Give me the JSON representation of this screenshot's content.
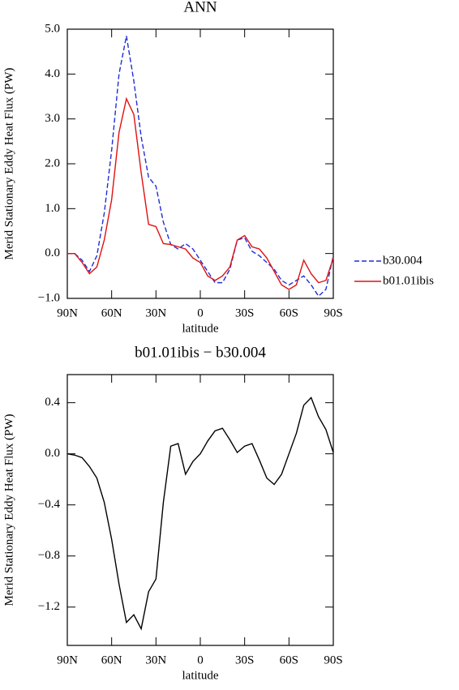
{
  "chart_data": [
    {
      "type": "line",
      "title": "ANN",
      "xlabel": "latitude",
      "ylabel": "Merid Stationary Eddy Heat Flux (PW)",
      "x": [
        90,
        85,
        80,
        75,
        70,
        65,
        60,
        55,
        50,
        45,
        40,
        35,
        30,
        25,
        20,
        15,
        10,
        5,
        0,
        -5,
        -10,
        -15,
        -20,
        -25,
        -30,
        -35,
        -40,
        -45,
        -50,
        -55,
        -60,
        -65,
        -70,
        -75,
        -80,
        -85,
        -90
      ],
      "series": [
        {
          "name": "b30.004",
          "color": "#1f2fd6",
          "style": "dashed",
          "values": [
            0.0,
            0.0,
            -0.15,
            -0.4,
            -0.05,
            0.9,
            2.3,
            4.0,
            4.85,
            3.85,
            2.6,
            1.7,
            1.5,
            0.7,
            0.2,
            0.1,
            0.22,
            0.1,
            -0.15,
            -0.4,
            -0.65,
            -0.65,
            -0.35,
            0.3,
            0.35,
            0.05,
            -0.05,
            -0.2,
            -0.35,
            -0.6,
            -0.7,
            -0.6,
            -0.5,
            -0.7,
            -0.95,
            -0.8,
            -0.05
          ]
        },
        {
          "name": "b01.01ibis",
          "color": "#e01010",
          "style": "solid",
          "values": [
            0.0,
            0.0,
            -0.2,
            -0.45,
            -0.3,
            0.3,
            1.2,
            2.7,
            3.45,
            3.1,
            1.8,
            0.65,
            0.6,
            0.22,
            0.2,
            0.15,
            0.1,
            -0.1,
            -0.2,
            -0.5,
            -0.6,
            -0.5,
            -0.3,
            0.3,
            0.4,
            0.15,
            0.1,
            -0.1,
            -0.4,
            -0.7,
            -0.8,
            -0.7,
            -0.15,
            -0.45,
            -0.65,
            -0.6,
            -0.1
          ]
        }
      ],
      "xlim": [
        90,
        -90
      ],
      "xticks": [
        {
          "value": 90,
          "label": "90N"
        },
        {
          "value": 60,
          "label": "60N"
        },
        {
          "value": 30,
          "label": "30N"
        },
        0,
        {
          "value": -30,
          "label": "30S"
        },
        {
          "value": -60,
          "label": "60S"
        },
        {
          "value": -90,
          "label": "90S"
        }
      ],
      "ylim": [
        -1.0,
        5.0
      ],
      "yticks": [
        {
          "value": -1.0,
          "label": "−1.0"
        },
        {
          "value": 0.0,
          "label": "0.0"
        },
        {
          "value": 1.0,
          "label": "1.0"
        },
        {
          "value": 2.0,
          "label": "2.0"
        },
        {
          "value": 3.0,
          "label": "3.0"
        },
        {
          "value": 4.0,
          "label": "4.0"
        },
        {
          "value": 5.0,
          "label": "5.0"
        }
      ],
      "legend": "right"
    },
    {
      "type": "line",
      "title": "b01.01ibis − b30.004",
      "xlabel": "latitude",
      "ylabel": "Merid Stationary Eddy Heat Flux (PW)",
      "x": [
        90,
        85,
        80,
        75,
        70,
        65,
        60,
        55,
        50,
        45,
        40,
        35,
        30,
        25,
        20,
        15,
        10,
        5,
        0,
        -5,
        -10,
        -15,
        -20,
        -25,
        -30,
        -35,
        -40,
        -45,
        -50,
        -55,
        -60,
        -65,
        -70,
        -75,
        -80,
        -85,
        -90
      ],
      "series": [
        {
          "color": "#000000",
          "style": "solid",
          "values": [
            0.0,
            -0.01,
            -0.03,
            -0.1,
            -0.19,
            -0.38,
            -0.67,
            -1.02,
            -1.32,
            -1.26,
            -1.37,
            -1.08,
            -0.98,
            -0.38,
            0.06,
            0.08,
            -0.16,
            -0.06,
            0.0,
            0.1,
            0.18,
            0.2,
            0.11,
            0.01,
            0.06,
            0.08,
            -0.05,
            -0.19,
            -0.24,
            -0.16,
            0.0,
            0.16,
            0.38,
            0.44,
            0.29,
            0.19,
            0.01
          ]
        }
      ],
      "xlim": [
        90,
        -90
      ],
      "xticks": [
        {
          "value": 90,
          "label": "90N"
        },
        {
          "value": 60,
          "label": "60N"
        },
        {
          "value": 30,
          "label": "30N"
        },
        0,
        {
          "value": -30,
          "label": "30S"
        },
        {
          "value": -60,
          "label": "60S"
        },
        {
          "value": -90,
          "label": "90S"
        }
      ],
      "ylim": [
        -1.5,
        0.62
      ],
      "yticks": [
        {
          "value": -1.2,
          "label": "−1.2"
        },
        {
          "value": -0.8,
          "label": "−0.8"
        },
        {
          "value": -0.4,
          "label": "−0.4"
        },
        {
          "value": 0.0,
          "label": "0.0"
        },
        0.4
      ]
    }
  ]
}
